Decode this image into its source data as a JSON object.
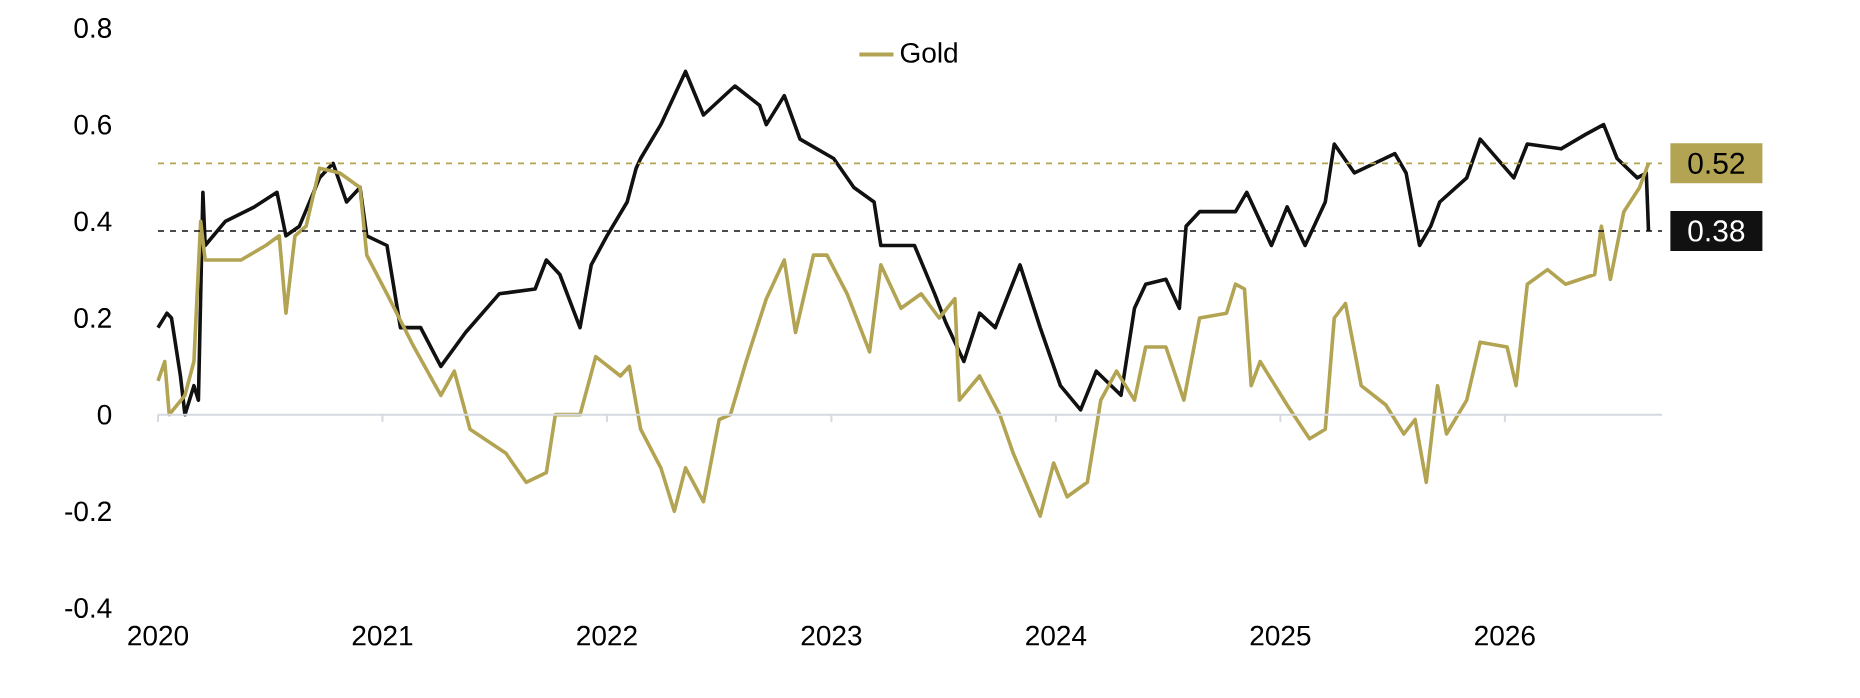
{
  "chart_data": {
    "type": "line",
    "series": [
      {
        "color": "#111111",
        "x": [
          2020.0,
          2020.04,
          2020.06,
          2020.1,
          2020.12,
          2020.16,
          2020.18,
          2020.2,
          2020.21,
          2020.3,
          2020.43,
          2020.53,
          2020.57,
          2020.63,
          2020.72,
          2020.78,
          2020.84,
          2020.9,
          2020.93,
          2021.02,
          2021.08,
          2021.17,
          2021.26,
          2021.37,
          2021.52,
          2021.68,
          2021.73,
          2021.79,
          2021.88,
          2021.93,
          2022.0,
          2022.09,
          2022.13,
          2022.15,
          2022.24,
          2022.35,
          2022.43,
          2022.57,
          2022.68,
          2022.71,
          2022.79,
          2022.86,
          2023.01,
          2023.1,
          2023.19,
          2023.22,
          2023.37,
          2023.46,
          2023.51,
          2023.59,
          2023.66,
          2023.73,
          2023.84,
          2023.93,
          2024.02,
          2024.11,
          2024.18,
          2024.29,
          2024.35,
          2024.4,
          2024.49,
          2024.55,
          2024.58,
          2024.64,
          2024.8,
          2024.85,
          2024.96,
          2025.03,
          2025.11,
          2025.2,
          2025.24,
          2025.33,
          2025.51,
          2025.56,
          2025.62,
          2025.67,
          2025.71,
          2025.83,
          2025.89,
          2026.04,
          2026.1,
          2026.25,
          2026.36,
          2026.44,
          2026.5,
          2026.59,
          2026.63,
          2026.64
        ],
        "values": [
          0.18,
          0.21,
          0.2,
          0.08,
          0.0,
          0.06,
          0.03,
          0.46,
          0.35,
          0.4,
          0.43,
          0.46,
          0.37,
          0.39,
          0.49,
          0.52,
          0.44,
          0.47,
          0.37,
          0.35,
          0.18,
          0.18,
          0.1,
          0.17,
          0.25,
          0.26,
          0.32,
          0.29,
          0.18,
          0.31,
          0.37,
          0.44,
          0.51,
          0.53,
          0.6,
          0.71,
          0.62,
          0.68,
          0.64,
          0.6,
          0.66,
          0.57,
          0.53,
          0.47,
          0.44,
          0.35,
          0.35,
          0.25,
          0.19,
          0.11,
          0.21,
          0.18,
          0.31,
          0.18,
          0.06,
          0.01,
          0.09,
          0.04,
          0.22,
          0.27,
          0.28,
          0.22,
          0.39,
          0.42,
          0.42,
          0.46,
          0.35,
          0.43,
          0.35,
          0.44,
          0.56,
          0.5,
          0.54,
          0.5,
          0.35,
          0.39,
          0.44,
          0.49,
          0.57,
          0.49,
          0.56,
          0.55,
          0.58,
          0.6,
          0.53,
          0.49,
          0.5,
          0.38
        ]
      },
      {
        "name": "Gold",
        "color": "#b3a453",
        "x": [
          2020.0,
          2020.03,
          2020.05,
          2020.12,
          2020.16,
          2020.19,
          2020.21,
          2020.37,
          2020.48,
          2020.54,
          2020.57,
          2020.61,
          2020.66,
          2020.72,
          2020.81,
          2020.9,
          2020.93,
          2021.02,
          2021.14,
          2021.26,
          2021.32,
          2021.39,
          2021.55,
          2021.64,
          2021.73,
          2021.77,
          2021.88,
          2021.95,
          2022.06,
          2022.1,
          2022.15,
          2022.24,
          2022.3,
          2022.35,
          2022.43,
          2022.5,
          2022.55,
          2022.62,
          2022.71,
          2022.79,
          2022.84,
          2022.92,
          2022.98,
          2023.07,
          2023.17,
          2023.22,
          2023.31,
          2023.4,
          2023.48,
          2023.55,
          2023.57,
          2023.66,
          2023.75,
          2023.81,
          2023.93,
          2023.99,
          2024.05,
          2024.14,
          2024.2,
          2024.27,
          2024.35,
          2024.4,
          2024.49,
          2024.57,
          2024.64,
          2024.76,
          2024.8,
          2024.84,
          2024.87,
          2024.91,
          2025.03,
          2025.13,
          2025.2,
          2025.24,
          2025.29,
          2025.36,
          2025.47,
          2025.55,
          2025.6,
          2025.65,
          2025.7,
          2025.74,
          2025.83,
          2025.89,
          2026.01,
          2026.05,
          2026.1,
          2026.19,
          2026.27,
          2026.4,
          2026.43,
          2026.47,
          2026.53,
          2026.6,
          2026.64
        ],
        "values": [
          0.07,
          0.11,
          0.0,
          0.04,
          0.11,
          0.4,
          0.32,
          0.32,
          0.35,
          0.37,
          0.21,
          0.37,
          0.39,
          0.51,
          0.5,
          0.47,
          0.33,
          0.25,
          0.14,
          0.04,
          0.09,
          -0.03,
          -0.08,
          -0.14,
          -0.12,
          0.0,
          0.0,
          0.12,
          0.08,
          0.1,
          -0.03,
          -0.11,
          -0.2,
          -0.11,
          -0.18,
          -0.01,
          0.0,
          0.11,
          0.24,
          0.32,
          0.17,
          0.33,
          0.33,
          0.25,
          0.13,
          0.31,
          0.22,
          0.25,
          0.2,
          0.24,
          0.03,
          0.08,
          0.0,
          -0.08,
          -0.21,
          -0.1,
          -0.17,
          -0.14,
          0.03,
          0.09,
          0.03,
          0.14,
          0.14,
          0.03,
          0.2,
          0.21,
          0.27,
          0.26,
          0.06,
          0.11,
          0.02,
          -0.05,
          -0.03,
          0.2,
          0.23,
          0.06,
          0.02,
          -0.04,
          -0.01,
          -0.14,
          0.06,
          -0.04,
          0.03,
          0.15,
          0.14,
          0.06,
          0.27,
          0.3,
          0.27,
          0.29,
          0.39,
          0.28,
          0.42,
          0.47,
          0.52
        ]
      }
    ],
    "xlim": [
      2020,
      2026.7
    ],
    "xticks": [
      2020,
      2021,
      2022,
      2023,
      2024,
      2025,
      2026
    ],
    "ylim": [
      -0.4,
      0.8
    ],
    "yticks": [
      {
        "value": -0.4,
        "label": "-0.4"
      },
      {
        "value": -0.2,
        "label": "-0.2"
      },
      0,
      {
        "value": 0.2,
        "label": "0.2"
      },
      {
        "value": 0.4,
        "label": "0.4"
      },
      {
        "value": 0.6,
        "label": "0.6"
      },
      {
        "value": 0.8,
        "label": "0.8"
      }
    ],
    "ref_lines": [
      {
        "axis": "y",
        "value": 0,
        "color": "#d5d9e0",
        "line_style": "solid"
      },
      {
        "axis": "y",
        "value": 0.52,
        "label": "0.52",
        "color": "#b3a453",
        "line_style": "dashed"
      },
      {
        "axis": "y",
        "value": 0.38,
        "label": "0.38",
        "color": "#111111",
        "line_style": "dashed"
      }
    ],
    "legend": "top",
    "line_style": "solid",
    "marker": "none"
  }
}
